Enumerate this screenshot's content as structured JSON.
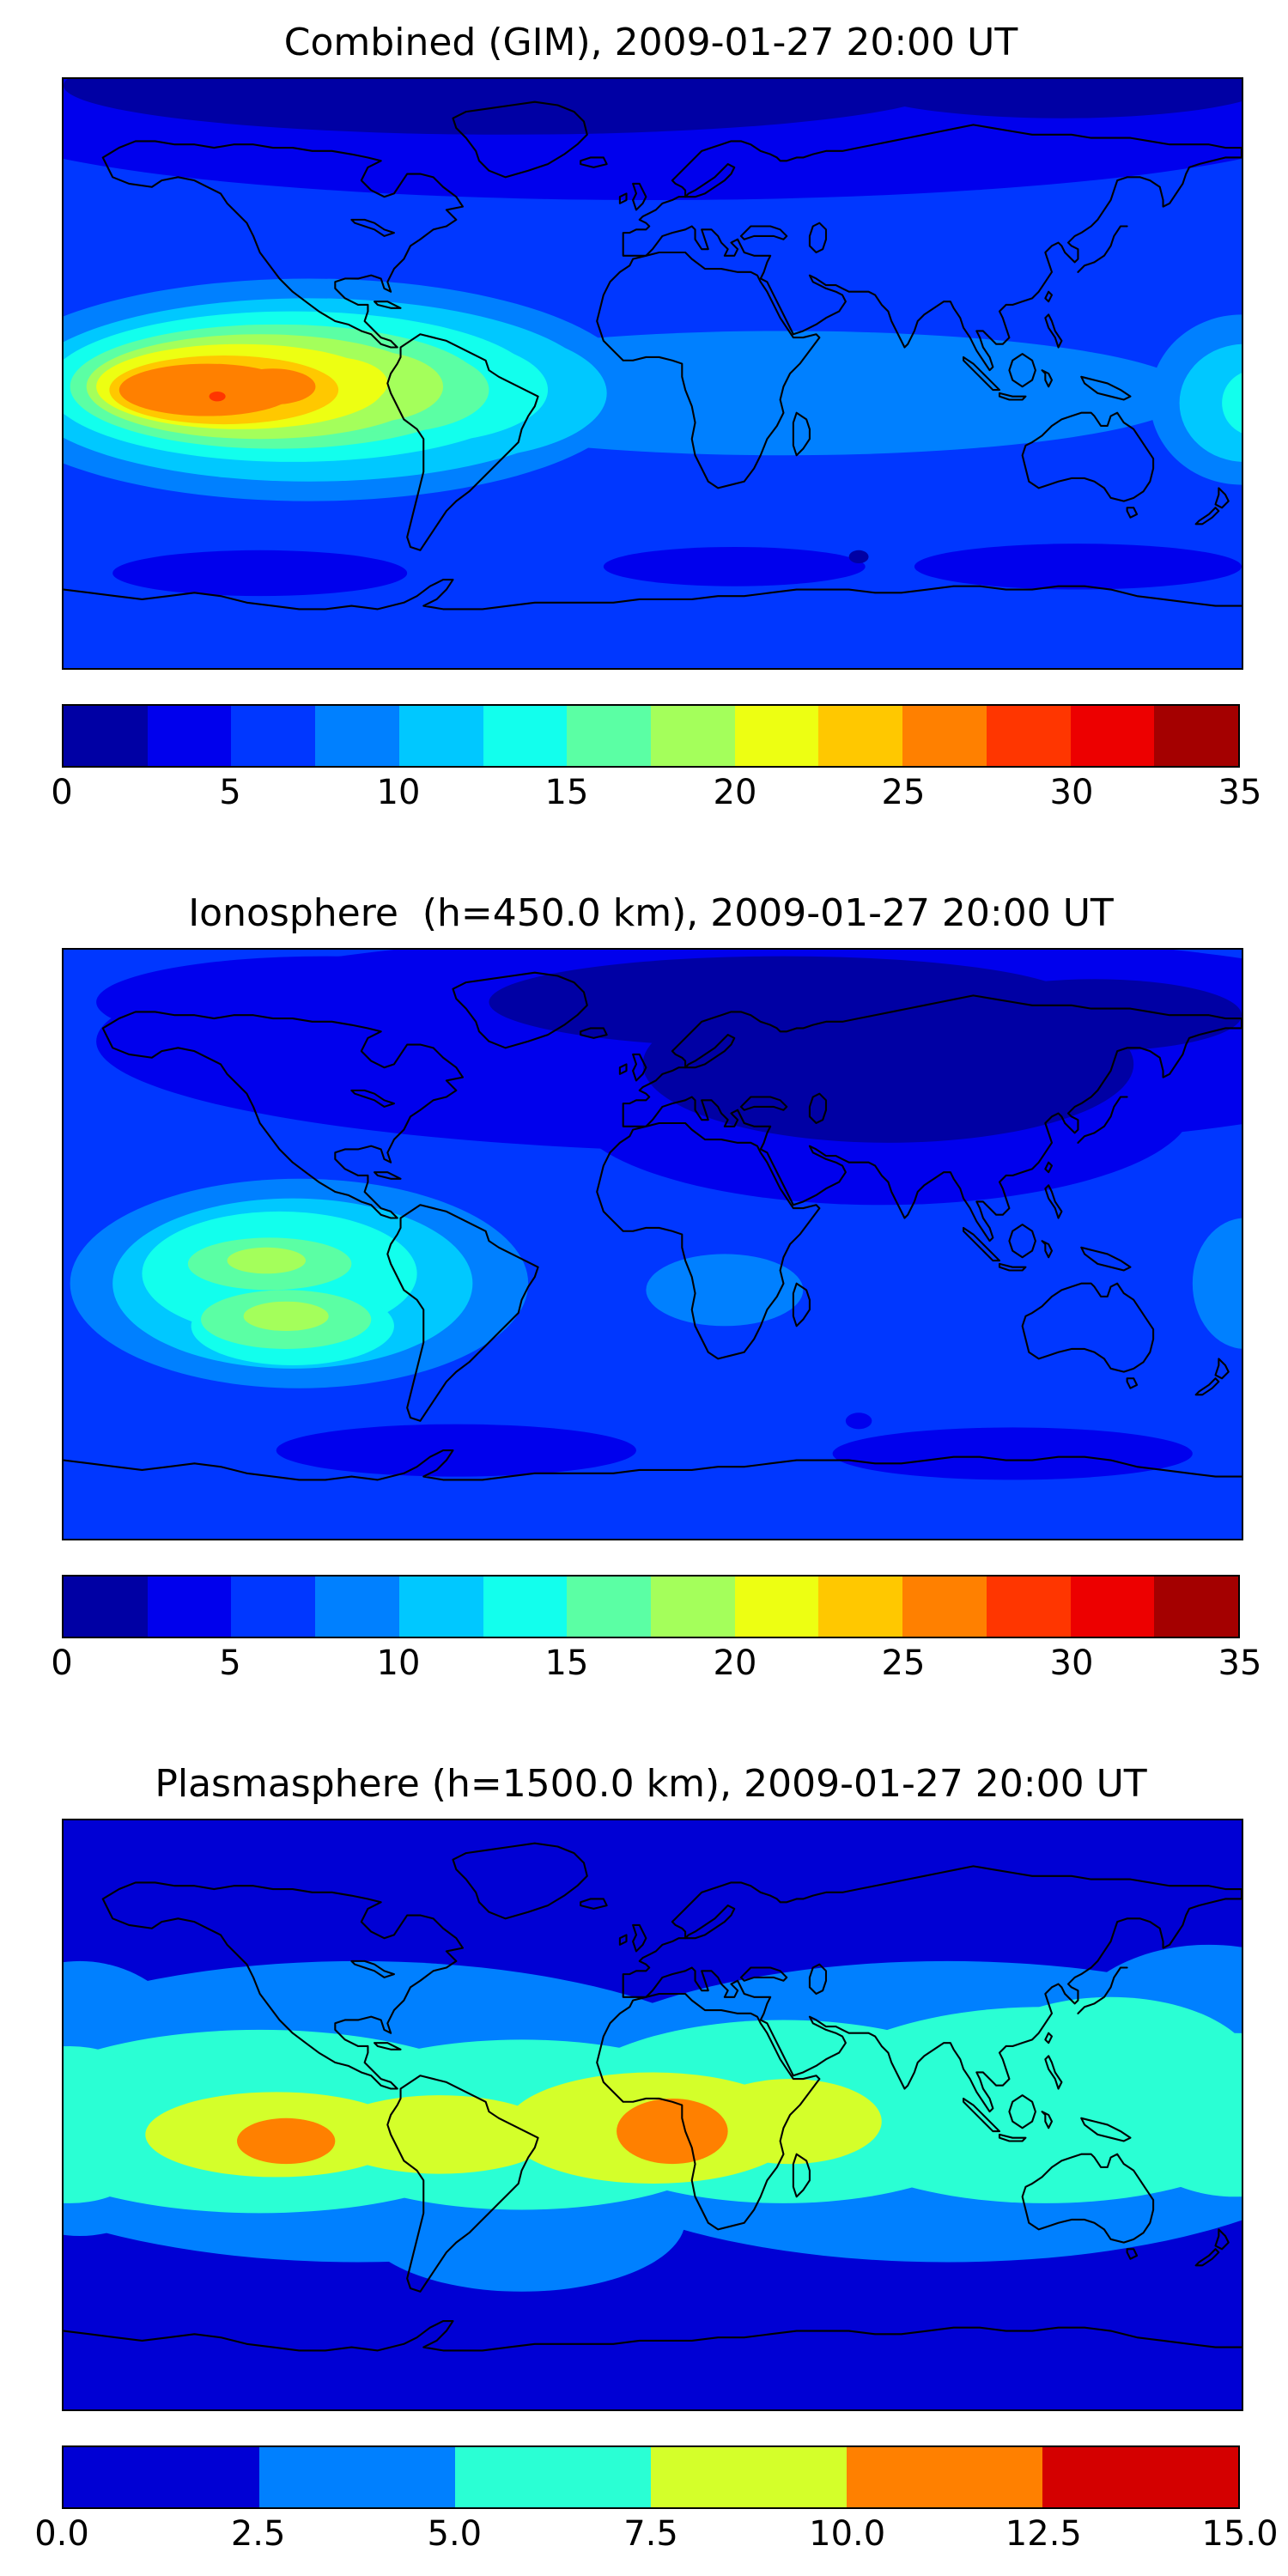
{
  "figure": {
    "description": "Three stacked global filled-contour maps of total electron content with horizontal colorbars",
    "background_color": "#ffffff",
    "coastline_color": "#000000"
  },
  "chart_data": [
    {
      "type": "filled_contour_map",
      "title": "Combined (GIM), 2009-01-27 20:00 UT",
      "projection": "equirectangular",
      "lon_range": [
        -180,
        180
      ],
      "lat_range": [
        -90,
        90
      ],
      "colormap": "jet",
      "value_range": [
        0,
        35
      ],
      "contour_interval": 2.5,
      "max_value_approx": 30,
      "hotspot": {
        "lon": -133,
        "lat": -6
      },
      "colors": [
        "#0000A4",
        "#0000ED",
        "#0037FF",
        "#0080FF",
        "#00C8FF",
        "#12FFED",
        "#5BFFA4",
        "#A4FF5B",
        "#EDFF12",
        "#FFC800",
        "#FF8000",
        "#FF3600",
        "#ED0000",
        "#A40000"
      ],
      "base_color_index": 2,
      "colorbar": {
        "orientation": "horizontal",
        "min": 0,
        "max": 35,
        "ticks": [
          "0",
          "5",
          "10",
          "15",
          "20",
          "25",
          "30",
          "35"
        ],
        "tick_values": [
          0,
          5,
          10,
          15,
          20,
          25,
          30,
          35
        ]
      },
      "regions": [
        {
          "lon": 0,
          "lat": 79,
          "rx": 210,
          "ry": 26,
          "level": 1
        },
        {
          "lon": -45,
          "lat": 88,
          "rx": 135,
          "ry": 15,
          "level": 0
        },
        {
          "lon": 125,
          "lat": 89,
          "rx": 65,
          "ry": 11,
          "level": 0
        },
        {
          "lon": -120,
          "lat": -61,
          "rx": 45,
          "ry": 7,
          "level": 1
        },
        {
          "lon": 25,
          "lat": -59,
          "rx": 40,
          "ry": 6,
          "level": 1
        },
        {
          "lon": 130,
          "lat": -59,
          "rx": 50,
          "ry": 7,
          "level": 1
        },
        {
          "lon": 63,
          "lat": -56,
          "rx": 3,
          "ry": 2,
          "level": 0
        },
        {
          "lon": 40,
          "lat": -6,
          "rx": 125,
          "ry": 19,
          "level": 3
        },
        {
          "lon": -105,
          "lat": -5,
          "rx": 100,
          "ry": 34,
          "level": 3
        },
        {
          "lon": 180,
          "lat": -8,
          "rx": 28,
          "ry": 26,
          "level": 3
        },
        {
          "lon": -105,
          "lat": -5,
          "rx": 88,
          "ry": 28,
          "level": 4
        },
        {
          "lon": -60,
          "lat": -6,
          "rx": 46,
          "ry": 20,
          "level": 4
        },
        {
          "lon": 181,
          "lat": -9,
          "rx": 20,
          "ry": 18,
          "level": 4
        },
        {
          "lon": -110,
          "lat": -4,
          "rx": 75,
          "ry": 23,
          "level": 5
        },
        {
          "lon": -70,
          "lat": -5,
          "rx": 38,
          "ry": 16,
          "level": 5
        },
        {
          "lon": 184,
          "lat": -9,
          "rx": 10,
          "ry": 10,
          "level": 5
        },
        {
          "lon": -115,
          "lat": -4,
          "rx": 63,
          "ry": 19,
          "level": 6
        },
        {
          "lon": -80,
          "lat": -5,
          "rx": 30,
          "ry": 13,
          "level": 6
        },
        {
          "lon": -120,
          "lat": -4,
          "rx": 53,
          "ry": 16,
          "level": 7
        },
        {
          "lon": -88,
          "lat": -4,
          "rx": 24,
          "ry": 11,
          "level": 7
        },
        {
          "lon": -126,
          "lat": -4,
          "rx": 44,
          "ry": 13,
          "level": 8
        },
        {
          "lon": -98,
          "lat": -3,
          "rx": 17,
          "ry": 8,
          "level": 8
        },
        {
          "lon": -131,
          "lat": -5,
          "rx": 35,
          "ry": 10.5,
          "level": 9
        },
        {
          "lon": -136,
          "lat": -5,
          "rx": 27,
          "ry": 8,
          "level": 10
        },
        {
          "lon": -116,
          "lat": -4,
          "rx": 13,
          "ry": 5.5,
          "level": 10
        },
        {
          "lon": -133,
          "lat": -7,
          "rx": 2.5,
          "ry": 1.5,
          "level": 11
        }
      ]
    },
    {
      "type": "filled_contour_map",
      "title": "Ionosphere  (h=450.0 km), 2009-01-27 20:00 UT",
      "projection": "equirectangular",
      "lon_range": [
        -180,
        180
      ],
      "lat_range": [
        -90,
        90
      ],
      "colormap": "jet",
      "value_range": [
        0,
        35
      ],
      "contour_interval": 2.5,
      "max_value_approx": 19,
      "hotspot": {
        "lon": -115,
        "lat": -12
      },
      "colors": [
        "#0000A4",
        "#0000ED",
        "#0037FF",
        "#0080FF",
        "#00C8FF",
        "#12FFED",
        "#5BFFA4",
        "#A4FF5B",
        "#EDFF12",
        "#FFC800",
        "#FF8000",
        "#FF3600",
        "#ED0000",
        "#A40000"
      ],
      "base_color_index": 2,
      "colorbar": {
        "orientation": "horizontal",
        "min": 0,
        "max": 35,
        "ticks": [
          "0",
          "5",
          "10",
          "15",
          "20",
          "25",
          "30",
          "35"
        ],
        "tick_values": [
          0,
          5,
          10,
          15,
          20,
          25,
          30,
          35
        ]
      },
      "regions": [
        {
          "lon": 40,
          "lat": 62,
          "rx": 210,
          "ry": 34,
          "level": 1
        },
        {
          "lon": 70,
          "lat": 42,
          "rx": 95,
          "ry": 30,
          "level": 1
        },
        {
          "lon": -100,
          "lat": 74,
          "rx": 70,
          "ry": 14,
          "level": 1
        },
        {
          "lon": 72,
          "lat": 55,
          "rx": 75,
          "ry": 24,
          "level": 0
        },
        {
          "lon": 40,
          "lat": 74,
          "rx": 90,
          "ry": 14,
          "level": 0
        },
        {
          "lon": 135,
          "lat": 70,
          "rx": 45,
          "ry": 11,
          "level": 0
        },
        {
          "lon": -60,
          "lat": -63,
          "rx": 55,
          "ry": 8,
          "level": 1
        },
        {
          "lon": 110,
          "lat": -64,
          "rx": 55,
          "ry": 8,
          "level": 1
        },
        {
          "lon": 63,
          "lat": -54,
          "rx": 4,
          "ry": 2.5,
          "level": 1
        },
        {
          "lon": -108,
          "lat": -12,
          "rx": 70,
          "ry": 32,
          "level": 3
        },
        {
          "lon": 22,
          "lat": -14,
          "rx": 24,
          "ry": 11,
          "level": 3
        },
        {
          "lon": 181,
          "lat": -12,
          "rx": 16,
          "ry": 20,
          "level": 3
        },
        {
          "lon": -110,
          "lat": -12,
          "rx": 55,
          "ry": 26,
          "level": 4
        },
        {
          "lon": -114,
          "lat": -9,
          "rx": 42,
          "ry": 19,
          "level": 5
        },
        {
          "lon": -110,
          "lat": -25,
          "rx": 31,
          "ry": 12,
          "level": 5
        },
        {
          "lon": -117,
          "lat": -6,
          "rx": 25,
          "ry": 8,
          "level": 6
        },
        {
          "lon": -112,
          "lat": -23,
          "rx": 26,
          "ry": 9,
          "level": 6
        },
        {
          "lon": -118,
          "lat": -5,
          "rx": 12,
          "ry": 4,
          "level": 7
        },
        {
          "lon": -112,
          "lat": -22,
          "rx": 13,
          "ry": 4.5,
          "level": 7
        }
      ]
    },
    {
      "type": "filled_contour_map",
      "title": "Plasmasphere (h=1500.0 km), 2009-01-27 20:00 UT",
      "projection": "equirectangular",
      "lon_range": [
        -180,
        180
      ],
      "lat_range": [
        -90,
        90
      ],
      "colormap": "jet",
      "value_range": [
        0,
        15
      ],
      "contour_interval": 2.5,
      "max_value_approx": 12,
      "hotspot": {
        "lon": 6,
        "lat": -5
      },
      "colors": [
        "#0000D4",
        "#0080FF",
        "#2AFFD4",
        "#D4FF2A",
        "#FF8000",
        "#D40000"
      ],
      "base_color_index": 0,
      "colorbar": {
        "orientation": "horizontal",
        "min": 0,
        "max": 15,
        "ticks": [
          "0.0",
          "2.5",
          "5.0",
          "7.5",
          "10.0",
          "12.5",
          "15.0"
        ],
        "tick_values": [
          0,
          2.5,
          5,
          7.5,
          10,
          12.5,
          15
        ]
      },
      "regions": [
        {
          "lon": -90,
          "lat": 1,
          "rx": 130,
          "ry": 46,
          "level": 1
        },
        {
          "lon": 90,
          "lat": 1,
          "rx": 130,
          "ry": 46,
          "level": 1
        },
        {
          "lon": 170,
          "lat": 22,
          "rx": 45,
          "ry": 30,
          "level": 1
        },
        {
          "lon": -175,
          "lat": 5,
          "rx": 40,
          "ry": 42,
          "level": 1
        },
        {
          "lon": -40,
          "lat": -32,
          "rx": 50,
          "ry": 22,
          "level": 1
        },
        {
          "lon": -120,
          "lat": -2,
          "rx": 80,
          "ry": 28,
          "level": 2
        },
        {
          "lon": -40,
          "lat": -3,
          "rx": 70,
          "ry": 26,
          "level": 2
        },
        {
          "lon": 40,
          "lat": 1,
          "rx": 70,
          "ry": 28,
          "level": 2
        },
        {
          "lon": 120,
          "lat": 3,
          "rx": 75,
          "ry": 30,
          "level": 2
        },
        {
          "lon": 178,
          "lat": 0,
          "rx": 35,
          "ry": 25,
          "level": 2
        },
        {
          "lon": -178,
          "lat": -3,
          "rx": 30,
          "ry": 24,
          "level": 2
        },
        {
          "lon": 140,
          "lat": 12,
          "rx": 45,
          "ry": 24,
          "level": 2
        },
        {
          "lon": -115,
          "lat": -6,
          "rx": 40,
          "ry": 13,
          "level": 3
        },
        {
          "lon": -65,
          "lat": -6,
          "rx": 35,
          "ry": 12,
          "level": 3
        },
        {
          "lon": 0,
          "lat": -4,
          "rx": 45,
          "ry": 17,
          "level": 3
        },
        {
          "lon": 42,
          "lat": -2,
          "rx": 28,
          "ry": 13,
          "level": 3
        },
        {
          "lon": -112,
          "lat": -8,
          "rx": 15,
          "ry": 7,
          "level": 4
        },
        {
          "lon": 6,
          "lat": -5,
          "rx": 17,
          "ry": 10,
          "level": 4
        }
      ]
    }
  ]
}
